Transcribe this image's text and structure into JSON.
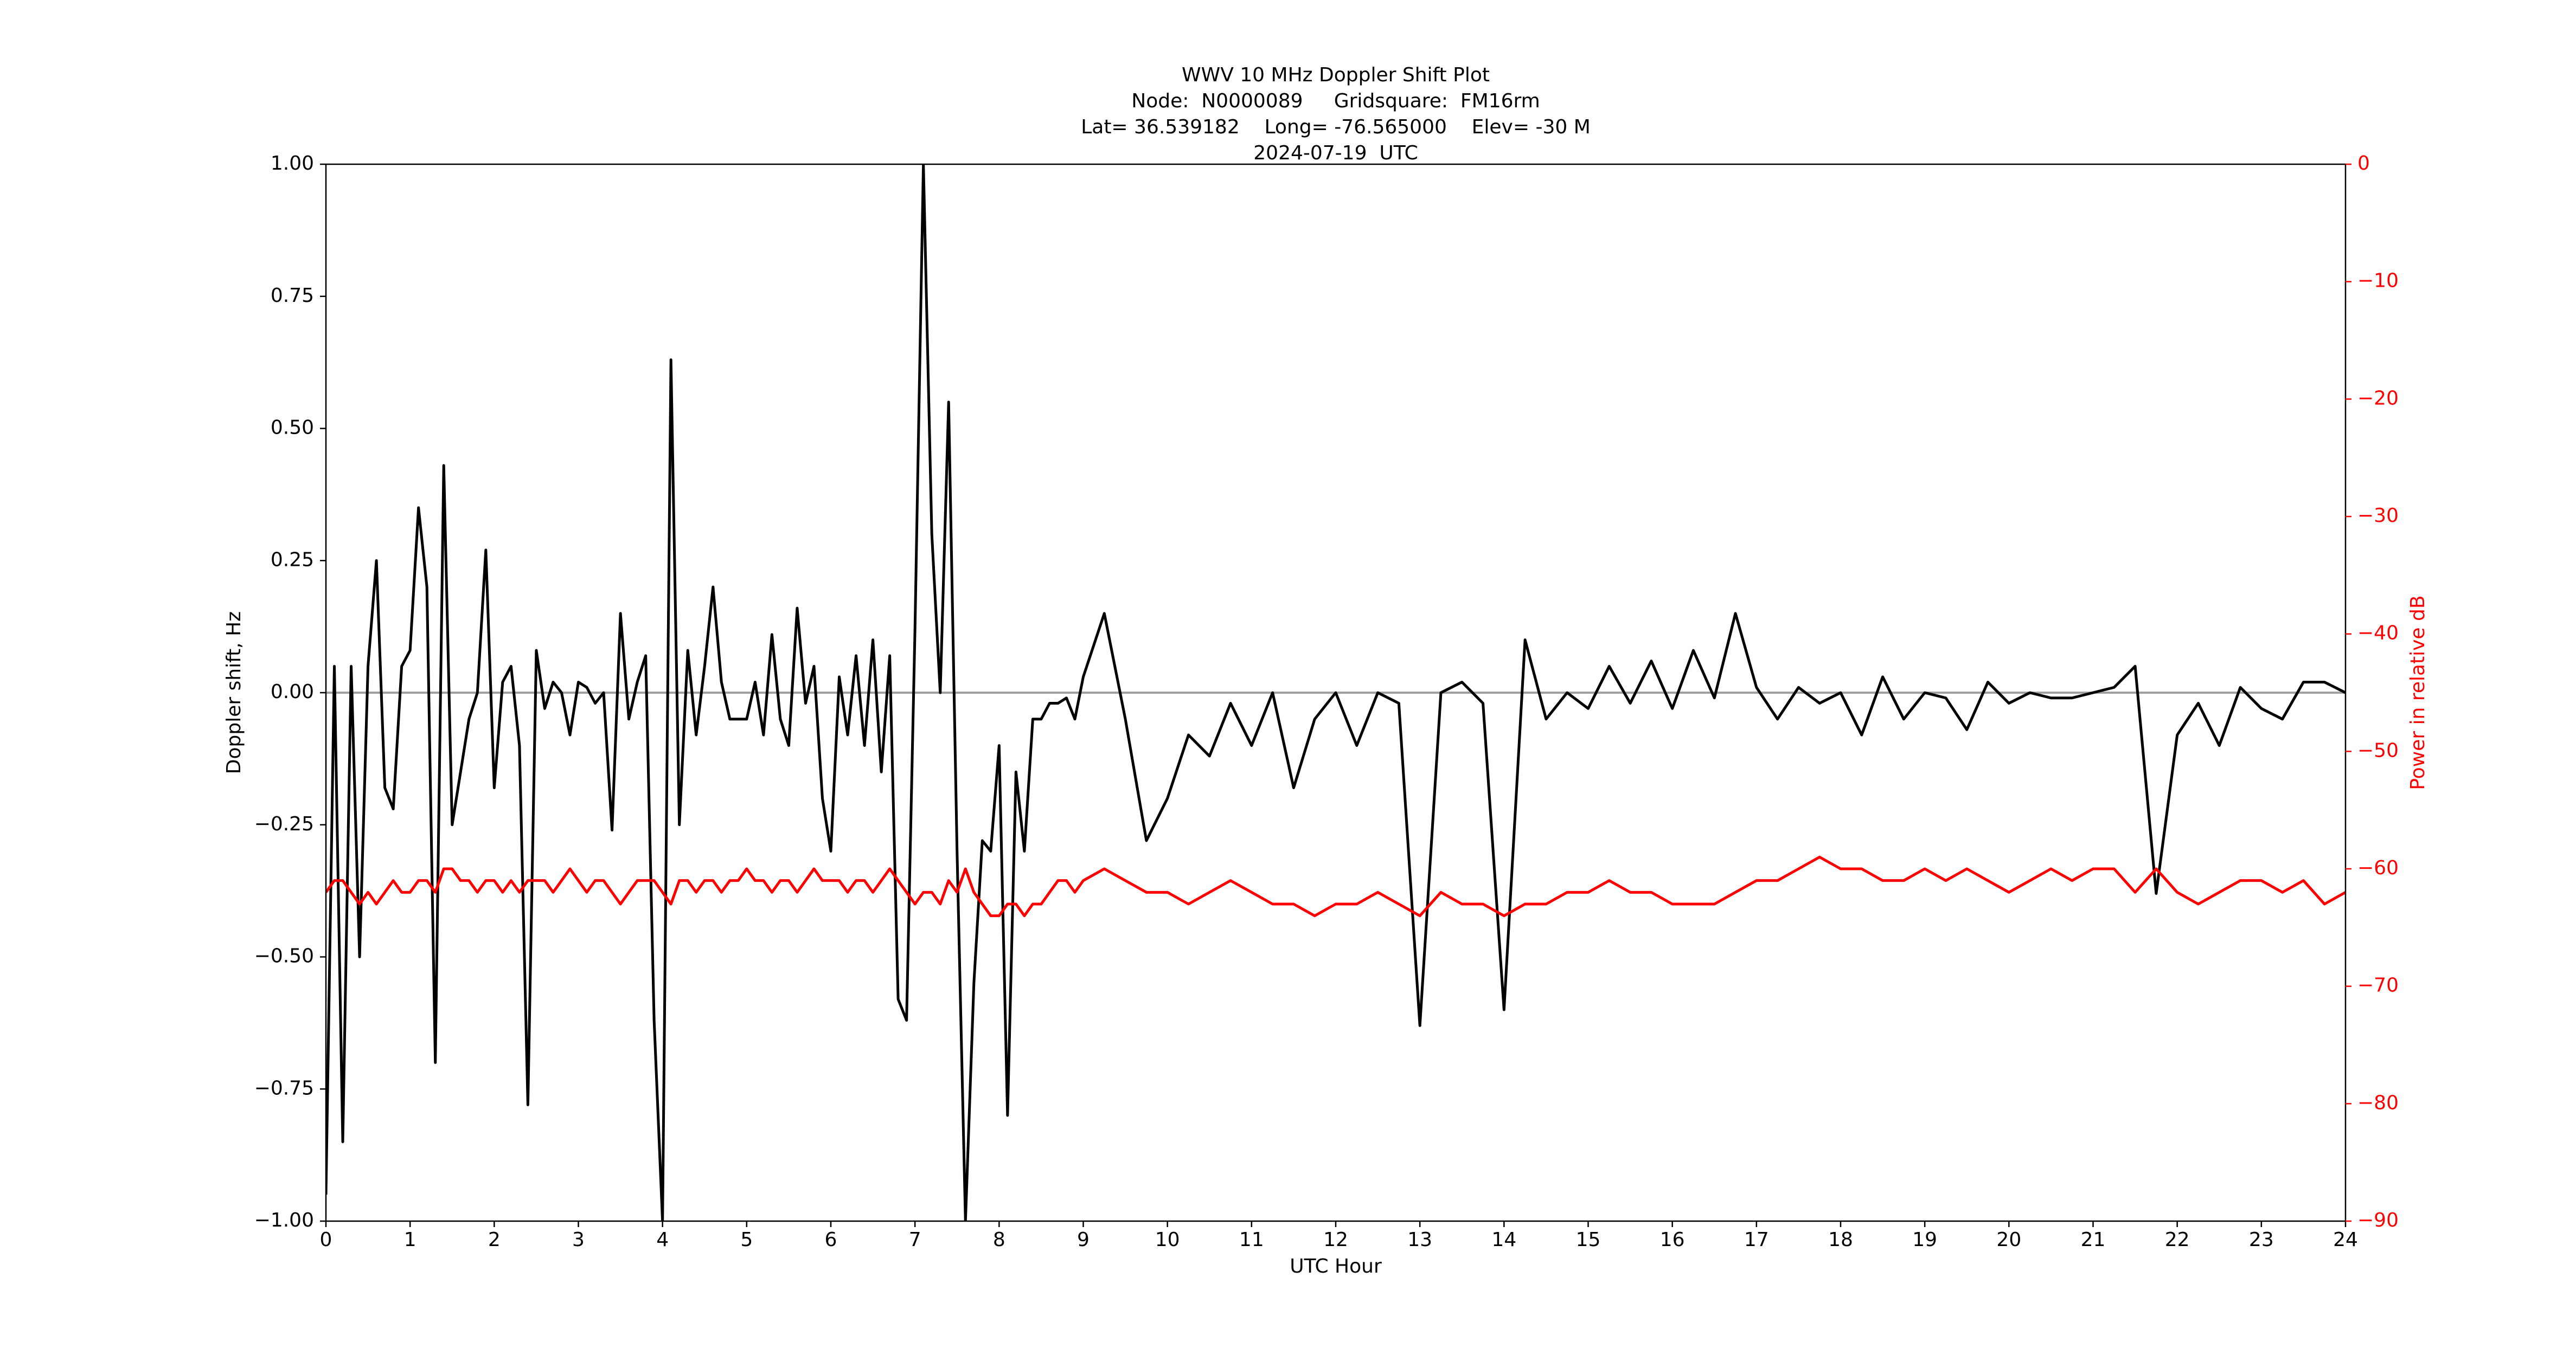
{
  "chart_data": {
    "type": "line",
    "title": [
      "WWV 10 MHz Doppler Shift Plot",
      "Node:  N0000089     Gridsquare:  FM16rm",
      "Lat= 36.539182    Long= -76.565000    Elev= -30 M",
      "2024-07-19  UTC"
    ],
    "xlabel": "UTC Hour",
    "ylabel": "Doppler shift, Hz",
    "y2label": "Power in relative dB",
    "xlim": [
      0,
      24
    ],
    "xticks": [
      0,
      1,
      2,
      3,
      4,
      5,
      6,
      7,
      8,
      9,
      10,
      11,
      12,
      13,
      14,
      15,
      16,
      17,
      18,
      19,
      20,
      21,
      22,
      23,
      24
    ],
    "ylim": [
      -1,
      1
    ],
    "yticks": [
      {
        "value": -1,
        "label": "−1.00"
      },
      {
        "value": -0.75,
        "label": "−0.75"
      },
      {
        "value": -0.5,
        "label": "−0.50"
      },
      {
        "value": -0.25,
        "label": "−0.25"
      },
      {
        "value": 0,
        "label": "0.00"
      },
      {
        "value": 0.25,
        "label": "0.25"
      },
      {
        "value": 0.5,
        "label": "0.50"
      },
      {
        "value": 0.75,
        "label": "0.75"
      },
      {
        "value": 1,
        "label": "1.00"
      }
    ],
    "y2lim": [
      -90,
      0
    ],
    "y2ticks": [
      {
        "value": -90,
        "label": "−90"
      },
      {
        "value": -80,
        "label": "−80"
      },
      {
        "value": -70,
        "label": "−70"
      },
      {
        "value": -60,
        "label": "−60"
      },
      {
        "value": -50,
        "label": "−50"
      },
      {
        "value": -40,
        "label": "−40"
      },
      {
        "value": -30,
        "label": "−30"
      },
      {
        "value": -20,
        "label": "−20"
      },
      {
        "value": -10,
        "label": "−10"
      },
      0
    ],
    "y2color": "#ff0000",
    "hline": 0,
    "hline_color": "#a0a0a0",
    "x": [
      0,
      0.1,
      0.2,
      0.3,
      0.4,
      0.5,
      0.6,
      0.7,
      0.8,
      0.9,
      1,
      1.1,
      1.2,
      1.3,
      1.4,
      1.5,
      1.6,
      1.7,
      1.8,
      1.9,
      2,
      2.1,
      2.2,
      2.3,
      2.4,
      2.5,
      2.6,
      2.7,
      2.8,
      2.9,
      3,
      3.1,
      3.2,
      3.3,
      3.4,
      3.5,
      3.6,
      3.7,
      3.8,
      3.9,
      4,
      4.1,
      4.2,
      4.3,
      4.4,
      4.5,
      4.6,
      4.7,
      4.8,
      4.9,
      5,
      5.1,
      5.2,
      5.3,
      5.4,
      5.5,
      5.6,
      5.7,
      5.8,
      5.9,
      6,
      6.1,
      6.2,
      6.3,
      6.4,
      6.5,
      6.6,
      6.7,
      6.8,
      6.9,
      7,
      7.1,
      7.2,
      7.3,
      7.4,
      7.5,
      7.6,
      7.7,
      7.8,
      7.9,
      8,
      8.1,
      8.2,
      8.3,
      8.4,
      8.5,
      8.6,
      8.7,
      8.8,
      8.9,
      9,
      9.25,
      9.5,
      9.75,
      10,
      10.25,
      10.5,
      10.75,
      11,
      11.25,
      11.5,
      11.75,
      12,
      12.25,
      12.5,
      12.75,
      13,
      13.25,
      13.5,
      13.75,
      14,
      14.25,
      14.5,
      14.75,
      15,
      15.25,
      15.5,
      15.75,
      16,
      16.25,
      16.5,
      16.75,
      17,
      17.25,
      17.5,
      17.75,
      18,
      18.25,
      18.5,
      18.75,
      19,
      19.25,
      19.5,
      19.75,
      20,
      20.25,
      20.5,
      20.75,
      21,
      21.25,
      21.5,
      21.75,
      22,
      22.25,
      22.5,
      22.75,
      23,
      23.25,
      23.5,
      23.75,
      24
    ],
    "series": [
      {
        "color": "#000000",
        "values": [
          -0.95,
          0.05,
          -0.85,
          0.05,
          -0.5,
          0.05,
          0.25,
          -0.18,
          -0.22,
          0.05,
          0.08,
          0.35,
          0.2,
          -0.7,
          0.43,
          -0.25,
          -0.15,
          -0.05,
          0,
          0.27,
          -0.18,
          0.02,
          0.05,
          -0.1,
          -0.78,
          0.08,
          -0.03,
          0.02,
          0,
          -0.08,
          0.02,
          0.01,
          -0.02,
          0,
          -0.26,
          0.15,
          -0.05,
          0.02,
          0.07,
          -0.62,
          -1,
          0.63,
          -0.25,
          0.08,
          -0.08,
          0.05,
          0.2,
          0.02,
          -0.05,
          -0.05,
          -0.05,
          0.02,
          -0.08,
          0.11,
          -0.05,
          -0.1,
          0.16,
          -0.02,
          0.05,
          -0.2,
          -0.3,
          0.03,
          -0.08,
          0.07,
          -0.1,
          0.1,
          -0.15,
          0.07,
          -0.58,
          -0.62,
          0.12,
          1,
          0.3,
          0,
          0.55,
          -0.3,
          -1,
          -0.55,
          -0.28,
          -0.3,
          -0.1,
          -0.8,
          -0.15,
          -0.3,
          -0.05,
          -0.05,
          -0.02,
          -0.02,
          -0.01,
          -0.05,
          0.03,
          0.15,
          -0.05,
          -0.28,
          -0.2,
          -0.08,
          -0.12,
          -0.02,
          -0.1,
          0,
          -0.18,
          -0.05,
          0,
          -0.1,
          0,
          -0.02,
          -0.63,
          0,
          0.02,
          -0.02,
          -0.6,
          0.1,
          -0.05,
          0,
          -0.03,
          0.05,
          -0.02,
          0.06,
          -0.03,
          0.08,
          -0.01,
          0.15,
          0.01,
          -0.05,
          0.01,
          -0.02,
          0,
          -0.08,
          0.03,
          -0.05,
          0,
          -0.01,
          -0.07,
          0.02,
          -0.02,
          0,
          -0.01,
          -0.01,
          0,
          0.01,
          0.05,
          -0.38,
          -0.08,
          -0.02,
          -0.1,
          0.01,
          -0.03,
          -0.05,
          0.02,
          0.02,
          0
        ]
      },
      {
        "color": "#ff0000",
        "axis": "y2",
        "values": [
          -62,
          -61,
          -61,
          -62,
          -63,
          -62,
          -63,
          -62,
          -61,
          -62,
          -62,
          -61,
          -61,
          -62,
          -60,
          -60,
          -61,
          -61,
          -62,
          -61,
          -61,
          -62,
          -61,
          -62,
          -61,
          -61,
          -61,
          -62,
          -61,
          -60,
          -61,
          -62,
          -61,
          -61,
          -62,
          -63,
          -62,
          -61,
          -61,
          -61,
          -62,
          -63,
          -61,
          -61,
          -62,
          -61,
          -61,
          -62,
          -61,
          -61,
          -60,
          -61,
          -61,
          -62,
          -61,
          -61,
          -62,
          -61,
          -60,
          -61,
          -61,
          -61,
          -62,
          -61,
          -61,
          -62,
          -61,
          -60,
          -61,
          -62,
          -63,
          -62,
          -62,
          -63,
          -61,
          -62,
          -60,
          -62,
          -63,
          -64,
          -64,
          -63,
          -63,
          -64,
          -63,
          -63,
          -62,
          -61,
          -61,
          -62,
          -61,
          -60,
          -61,
          -62,
          -62,
          -63,
          -62,
          -61,
          -62,
          -63,
          -63,
          -64,
          -63,
          -63,
          -62,
          -63,
          -64,
          -62,
          -63,
          -63,
          -64,
          -63,
          -63,
          -62,
          -62,
          -61,
          -62,
          -62,
          -63,
          -63,
          -63,
          -62,
          -61,
          -61,
          -60,
          -59,
          -60,
          -60,
          -61,
          -61,
          -60,
          -61,
          -60,
          -61,
          -62,
          -61,
          -60,
          -61,
          -60,
          -60,
          -62,
          -60,
          -62,
          -63,
          -62,
          -61,
          -61,
          -62,
          -61,
          -63,
          -62
        ]
      }
    ]
  }
}
